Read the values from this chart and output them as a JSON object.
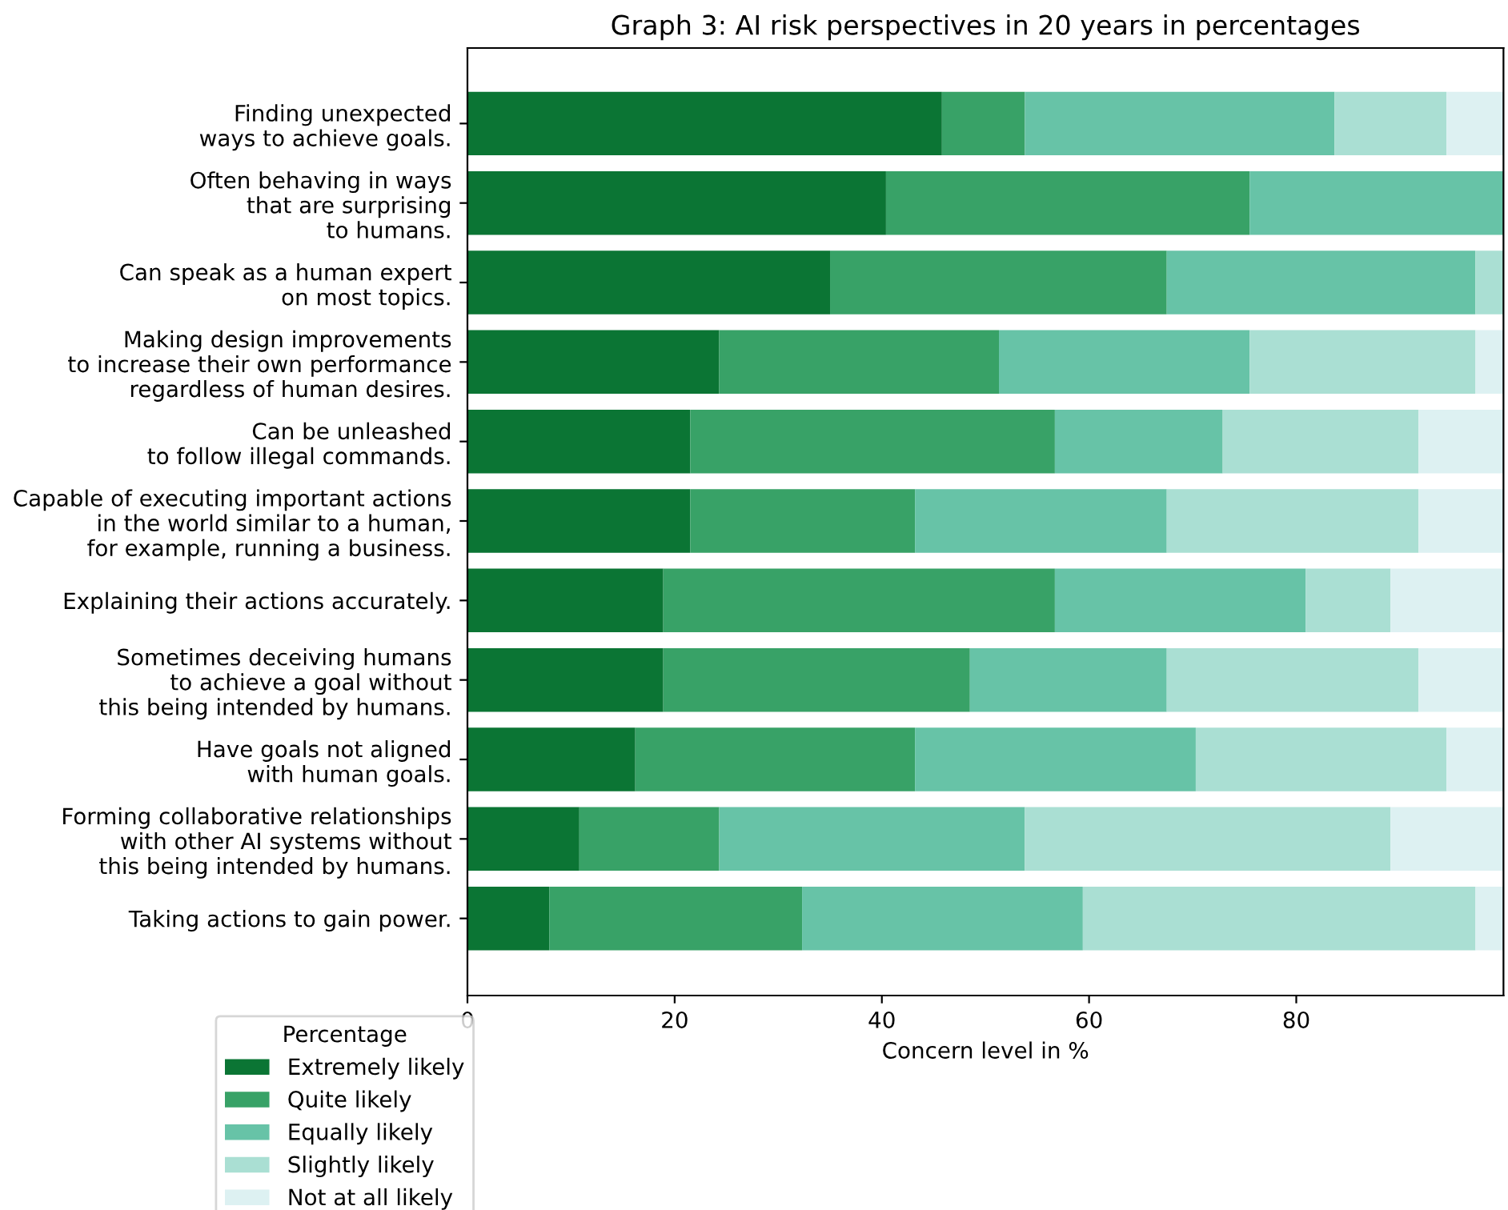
{
  "chart_data": {
    "type": "bar",
    "orientation": "horizontal",
    "stacked": true,
    "title": "Graph 3: AI risk perspectives in 20 years in percentages",
    "xlabel": "Concern level in %",
    "legend_title": "Percentage",
    "legend": "bottom left",
    "categories": [
      "Finding unexpected\nways to achieve goals.",
      "Often behaving in ways\nthat are surprising\nto humans.",
      "Can speak as a human expert\non most topics.",
      "Making design improvements\nto increase their own performance\nregardless of human desires.",
      "Can be unleashed\nto follow illegal commands.",
      "Capable of executing important actions\nin the world similar to a human,\nfor example, running a business.",
      "Explaining their actions accurately.",
      "Sometimes deceiving humans\nto achieve a goal without\nthis being intended by humans.",
      "Have goals not aligned\nwith human goals.",
      "Forming collaborative relationships\nwith other AI systems without\nthis being intended by humans.",
      "Taking actions to gain power."
    ],
    "series": [
      {
        "name": "Extremely likely",
        "color": "#0b7534",
        "values": [
          45.8,
          40.4,
          35.0,
          24.3,
          21.5,
          21.5,
          18.9,
          18.9,
          16.2,
          10.8,
          7.9
        ]
      },
      {
        "name": "Quite likely",
        "color": "#38a267",
        "values": [
          8.0,
          35.1,
          32.5,
          27.0,
          35.2,
          21.7,
          37.8,
          29.6,
          27.0,
          13.5,
          24.4
        ]
      },
      {
        "name": "Equally likely",
        "color": "#67c3a7",
        "values": [
          29.9,
          24.5,
          29.8,
          24.2,
          16.2,
          24.3,
          24.2,
          19.0,
          27.1,
          29.5,
          27.1
        ]
      },
      {
        "name": "Slightly likely",
        "color": "#aadfd3",
        "values": [
          10.8,
          0,
          2.7,
          21.8,
          18.9,
          24.3,
          8.2,
          24.3,
          24.2,
          35.3,
          37.9
        ]
      },
      {
        "name": "Not at all likely",
        "color": "#ddf1f2",
        "values": [
          5.5,
          0,
          0,
          2.7,
          8.2,
          8.2,
          10.9,
          8.2,
          5.5,
          10.9,
          2.7
        ]
      }
    ],
    "xlim": [
      0,
      100
    ],
    "xticks": [
      0,
      20,
      40,
      60,
      80
    ]
  }
}
